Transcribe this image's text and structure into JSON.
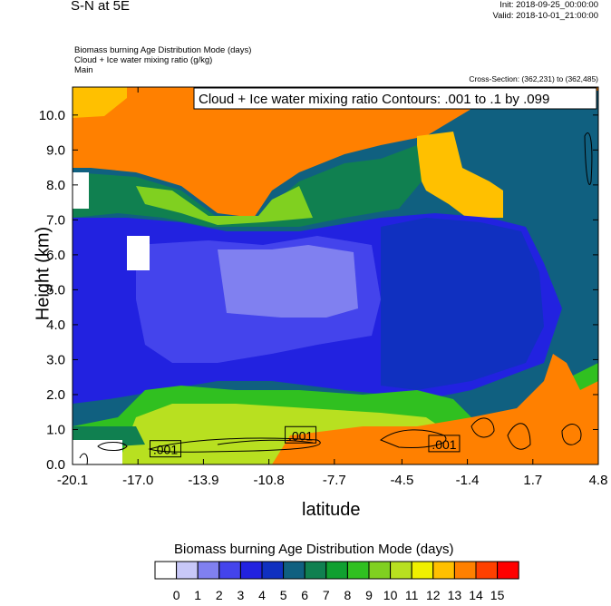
{
  "header": {
    "title": "S-N at 5E",
    "init": "Init: 2018-09-25_00:00:00",
    "valid": "Valid: 2018-10-01_21:00:00",
    "field1": "Biomass burning Age Distribution Mode   (days)",
    "field2": "Cloud + Ice water mixing ratio   (g/kg)",
    "field3": "Main",
    "cross_section": "Cross-Section: (362,231) to (362,485)"
  },
  "chart_data": {
    "type": "heatmap",
    "title": "",
    "xlabel": "latitude",
    "ylabel": "Height (km)",
    "xlim": [
      -20.1,
      4.8
    ],
    "ylim": [
      0.0,
      10.8
    ],
    "x_ticks": [
      "-20.1",
      "-17.0",
      "-13.9",
      "-10.8",
      "-7.7",
      "-4.5",
      "-1.4",
      "1.7",
      "4.8"
    ],
    "y_ticks": [
      "0.0",
      "1.0",
      "2.0",
      "3.0",
      "4.0",
      "5.0",
      "6.0",
      "7.0",
      "8.0",
      "9.0",
      "10.0"
    ],
    "contour_label_box": "Cloud + Ice water mixing ratio Contours: .001 to .1 by .099",
    "contour_labels": [
      {
        "text": ".001",
        "x": -15.7,
        "y": 0.45
      },
      {
        "text": ".001",
        "x": -9.3,
        "y": 0.85
      },
      {
        "text": ".001",
        "x": -2.5,
        "y": 0.6
      }
    ],
    "legend": {
      "title": "Biomass burning Age Distribution Mode  (days)",
      "labels": [
        "0",
        "1",
        "2",
        "3",
        "4",
        "5",
        "6",
        "7",
        "8",
        "9",
        "10",
        "11",
        "12",
        "13",
        "14",
        "15"
      ],
      "colors": [
        "#ffffff",
        "#c8c8f8",
        "#8080f0",
        "#4444ec",
        "#2222e0",
        "#1030c0",
        "#106080",
        "#108050",
        "#10a030",
        "#30c020",
        "#80d020",
        "#b8e020",
        "#f0f000",
        "#ffc000",
        "#ff8000",
        "#ff4000",
        "#ff0000"
      ]
    }
  }
}
